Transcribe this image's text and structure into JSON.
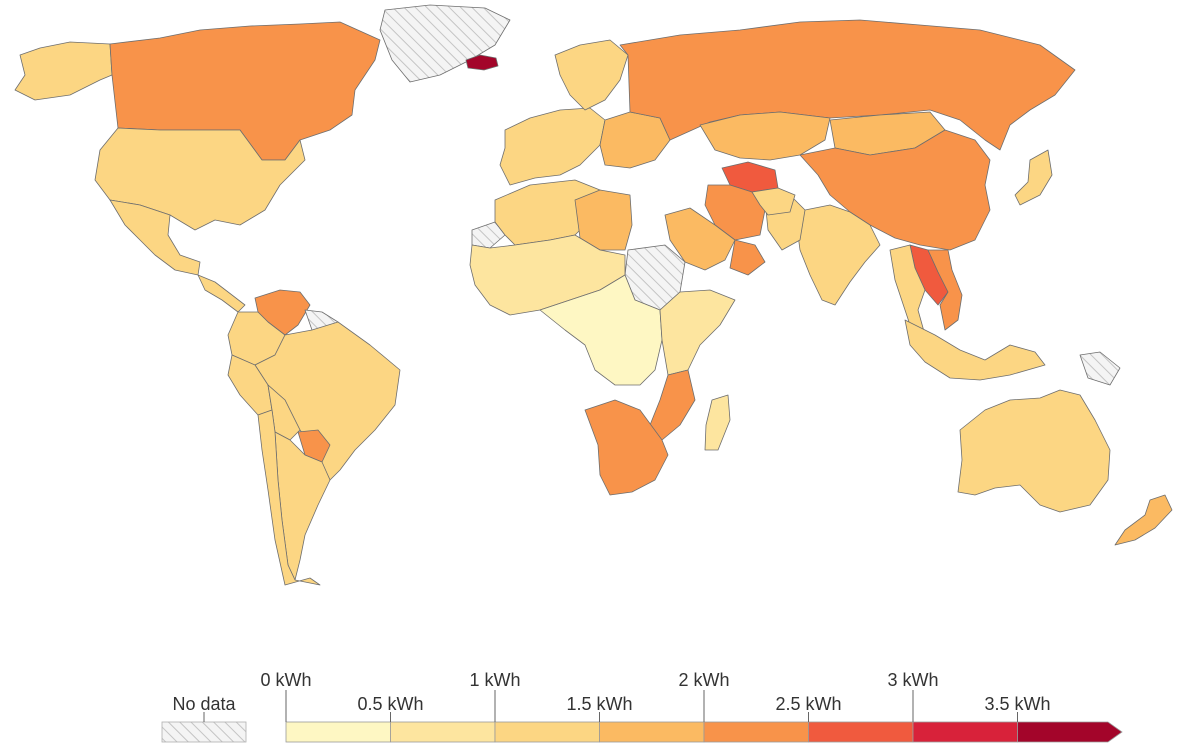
{
  "legend": {
    "no_data_label": "No data",
    "tick_labels_upper": [
      "0 kWh",
      "1 kWh",
      "2 kWh",
      "3 kWh"
    ],
    "tick_labels_lower": [
      "0.5 kWh",
      "1.5 kWh",
      "2.5 kWh",
      "3.5 kWh"
    ],
    "bins": [
      {
        "range": [
          0,
          0.5
        ],
        "color": "#fef7c3"
      },
      {
        "range": [
          0.5,
          1
        ],
        "color": "#fde59f"
      },
      {
        "range": [
          1,
          1.5
        ],
        "color": "#fcd683"
      },
      {
        "range": [
          1.5,
          2
        ],
        "color": "#fbba62"
      },
      {
        "range": [
          2,
          2.5
        ],
        "color": "#f8934a"
      },
      {
        "range": [
          2.5,
          3
        ],
        "color": "#f05a3e"
      },
      {
        "range": [
          3,
          3.5
        ],
        "color": "#d8223a"
      },
      {
        "range": [
          3.5,
          4
        ],
        "color": "#a3052a"
      }
    ],
    "open_ended_top": true
  },
  "colors": {
    "no_data_fill": "#f3f3f3",
    "no_data_hatch": "#c8c8c8",
    "border": "#6e6e6e"
  },
  "regions": [
    {
      "name": "Alaska",
      "bin": 2
    },
    {
      "name": "Canada",
      "bin": 4
    },
    {
      "name": "Greenland",
      "bin": null
    },
    {
      "name": "Iceland",
      "bin": 7
    },
    {
      "name": "United States",
      "bin": 2
    },
    {
      "name": "Mexico",
      "bin": 2
    },
    {
      "name": "Central America",
      "bin": 2
    },
    {
      "name": "Venezuela",
      "bin": 4
    },
    {
      "name": "Guyana",
      "bin": null
    },
    {
      "name": "Colombia",
      "bin": 2
    },
    {
      "name": "Brazil",
      "bin": 2
    },
    {
      "name": "Peru",
      "bin": 2
    },
    {
      "name": "Bolivia",
      "bin": 2
    },
    {
      "name": "Paraguay",
      "bin": 4
    },
    {
      "name": "Argentina",
      "bin": 2
    },
    {
      "name": "Chile",
      "bin": 2
    },
    {
      "name": "Western Europe",
      "bin": 2
    },
    {
      "name": "Scandinavia",
      "bin": 2
    },
    {
      "name": "Eastern Europe",
      "bin": 3
    },
    {
      "name": "Russia",
      "bin": 4
    },
    {
      "name": "Kazakhstan",
      "bin": 3
    },
    {
      "name": "Mongolia",
      "bin": 3
    },
    {
      "name": "China",
      "bin": 4
    },
    {
      "name": "Turkmenistan",
      "bin": 5
    },
    {
      "name": "Iran",
      "bin": 4
    },
    {
      "name": "Saudi Arabia",
      "bin": 3
    },
    {
      "name": "Oman",
      "bin": 4
    },
    {
      "name": "India",
      "bin": 2
    },
    {
      "name": "Pakistan",
      "bin": 2
    },
    {
      "name": "Afghanistan",
      "bin": 2
    },
    {
      "name": "Laos",
      "bin": 5
    },
    {
      "name": "Vietnam",
      "bin": 4
    },
    {
      "name": "Thailand",
      "bin": 2
    },
    {
      "name": "Indonesia",
      "bin": 2
    },
    {
      "name": "Papua New Guinea",
      "bin": null
    },
    {
      "name": "Japan",
      "bin": 2
    },
    {
      "name": "Australia",
      "bin": 2
    },
    {
      "name": "New Zealand",
      "bin": 3
    },
    {
      "name": "Sudan",
      "bin": null
    },
    {
      "name": "Western Sahara",
      "bin": null
    },
    {
      "name": "North Africa",
      "bin": 2
    },
    {
      "name": "Libya",
      "bin": 3
    },
    {
      "name": "Sahel",
      "bin": 1
    },
    {
      "name": "Central Africa",
      "bin": 0
    },
    {
      "name": "East Africa",
      "bin": 1
    },
    {
      "name": "Mozambique",
      "bin": 4
    },
    {
      "name": "South Africa",
      "bin": 4
    },
    {
      "name": "Madagascar",
      "bin": 1
    }
  ]
}
